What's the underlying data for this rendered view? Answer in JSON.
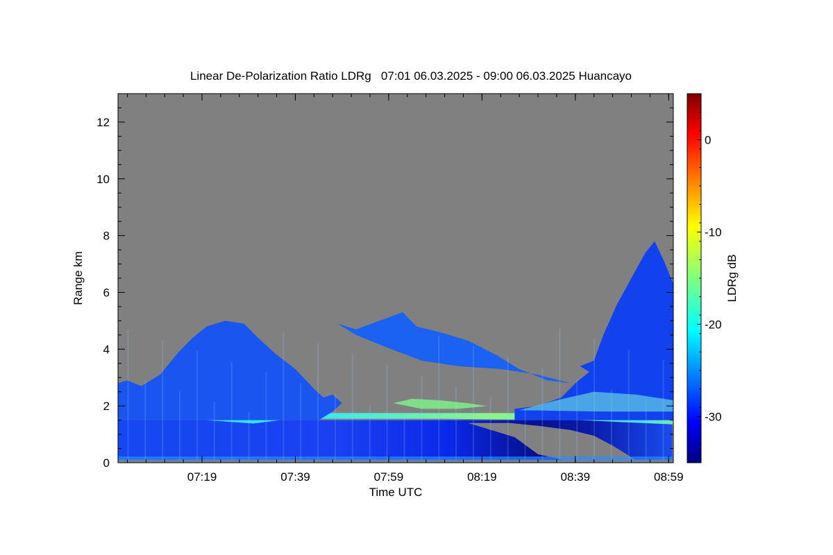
{
  "chart_data": {
    "type": "heatmap",
    "title": "Linear De-Polarization Ratio LDRg   07:01 06.03.2025 - 09:00 06.03.2025 Huancayo",
    "xlabel": "Time UTC",
    "ylabel": "Range km",
    "colorbar_label": "LDRg dB",
    "x_ticks": [
      "07:19",
      "07:39",
      "07:59",
      "08:19",
      "08:39",
      "08:59"
    ],
    "x_range": [
      "07:01",
      "09:00"
    ],
    "y_ticks": [
      0,
      2,
      4,
      6,
      8,
      10,
      12
    ],
    "y_range": [
      0,
      13
    ],
    "colorbar_ticks": [
      0,
      -10,
      -20,
      -30
    ],
    "colorbar_range": [
      -35,
      5
    ],
    "colormap": "jet",
    "no_data_color": "#808080",
    "features": [
      {
        "name": "boundary-layer-low-ldr",
        "time_range": [
          "07:01",
          "08:59"
        ],
        "range_km": [
          0.1,
          1.5
        ],
        "ldr_db": -32
      },
      {
        "name": "enhanced-ldr-layer",
        "time_range": [
          "07:01",
          "08:59"
        ],
        "range_km": [
          1.3,
          1.7
        ],
        "ldr_db": -22
      },
      {
        "name": "early-cloud",
        "time_range": [
          "07:01",
          "07:37"
        ],
        "range_km": [
          1.7,
          5.0
        ],
        "ldr_db": -27
      },
      {
        "name": "mid-level-cloud",
        "time_range": [
          "07:48",
          "08:27"
        ],
        "range_km": [
          2.8,
          5.3
        ],
        "ldr_db": -27
      },
      {
        "name": "late-cloud",
        "time_range": [
          "08:31",
          "08:59"
        ],
        "range_km": [
          1.8,
          7.8
        ],
        "ldr_db": -29
      }
    ]
  }
}
